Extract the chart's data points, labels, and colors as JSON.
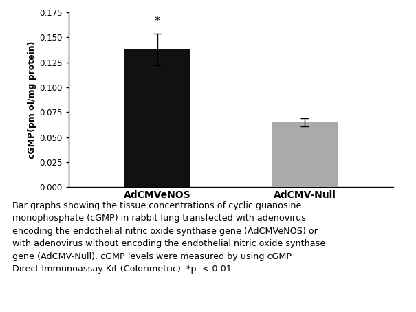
{
  "categories": [
    "AdCMVeNOS",
    "AdCMV-Null"
  ],
  "values": [
    0.138,
    0.065
  ],
  "errors": [
    0.016,
    0.004
  ],
  "bar_colors": [
    "#111111",
    "#aaaaaa"
  ],
  "ylabel": "cGMP(pm ol/mg protein)",
  "ylim": [
    0,
    0.175
  ],
  "yticks": [
    0.0,
    0.025,
    0.05,
    0.075,
    0.1,
    0.125,
    0.15,
    0.175
  ],
  "significance_label": "*",
  "caption_line1": "Bar graphs showing the tissue concentrations of cyclic guanosine",
  "caption_line2": "monophosphate (cGMP) in rabbit lung transfected with adenovirus",
  "caption_line3": "encoding the endothelial nitric oxide synthase gene (AdCMVeNOS) or",
  "caption_line4": "with adenovirus without encoding the endothelial nitric oxide synthase",
  "caption_line5": "gene (AdCMV-Null). cGMP levels were measured by using cGMP",
  "caption_line6": "Direct Immunoassay Kit (Colorimetric). *p  < 0.01.",
  "background_color": "#ffffff",
  "bar_width": 0.45,
  "fig_width": 6.05,
  "fig_height": 4.54,
  "dpi": 100
}
